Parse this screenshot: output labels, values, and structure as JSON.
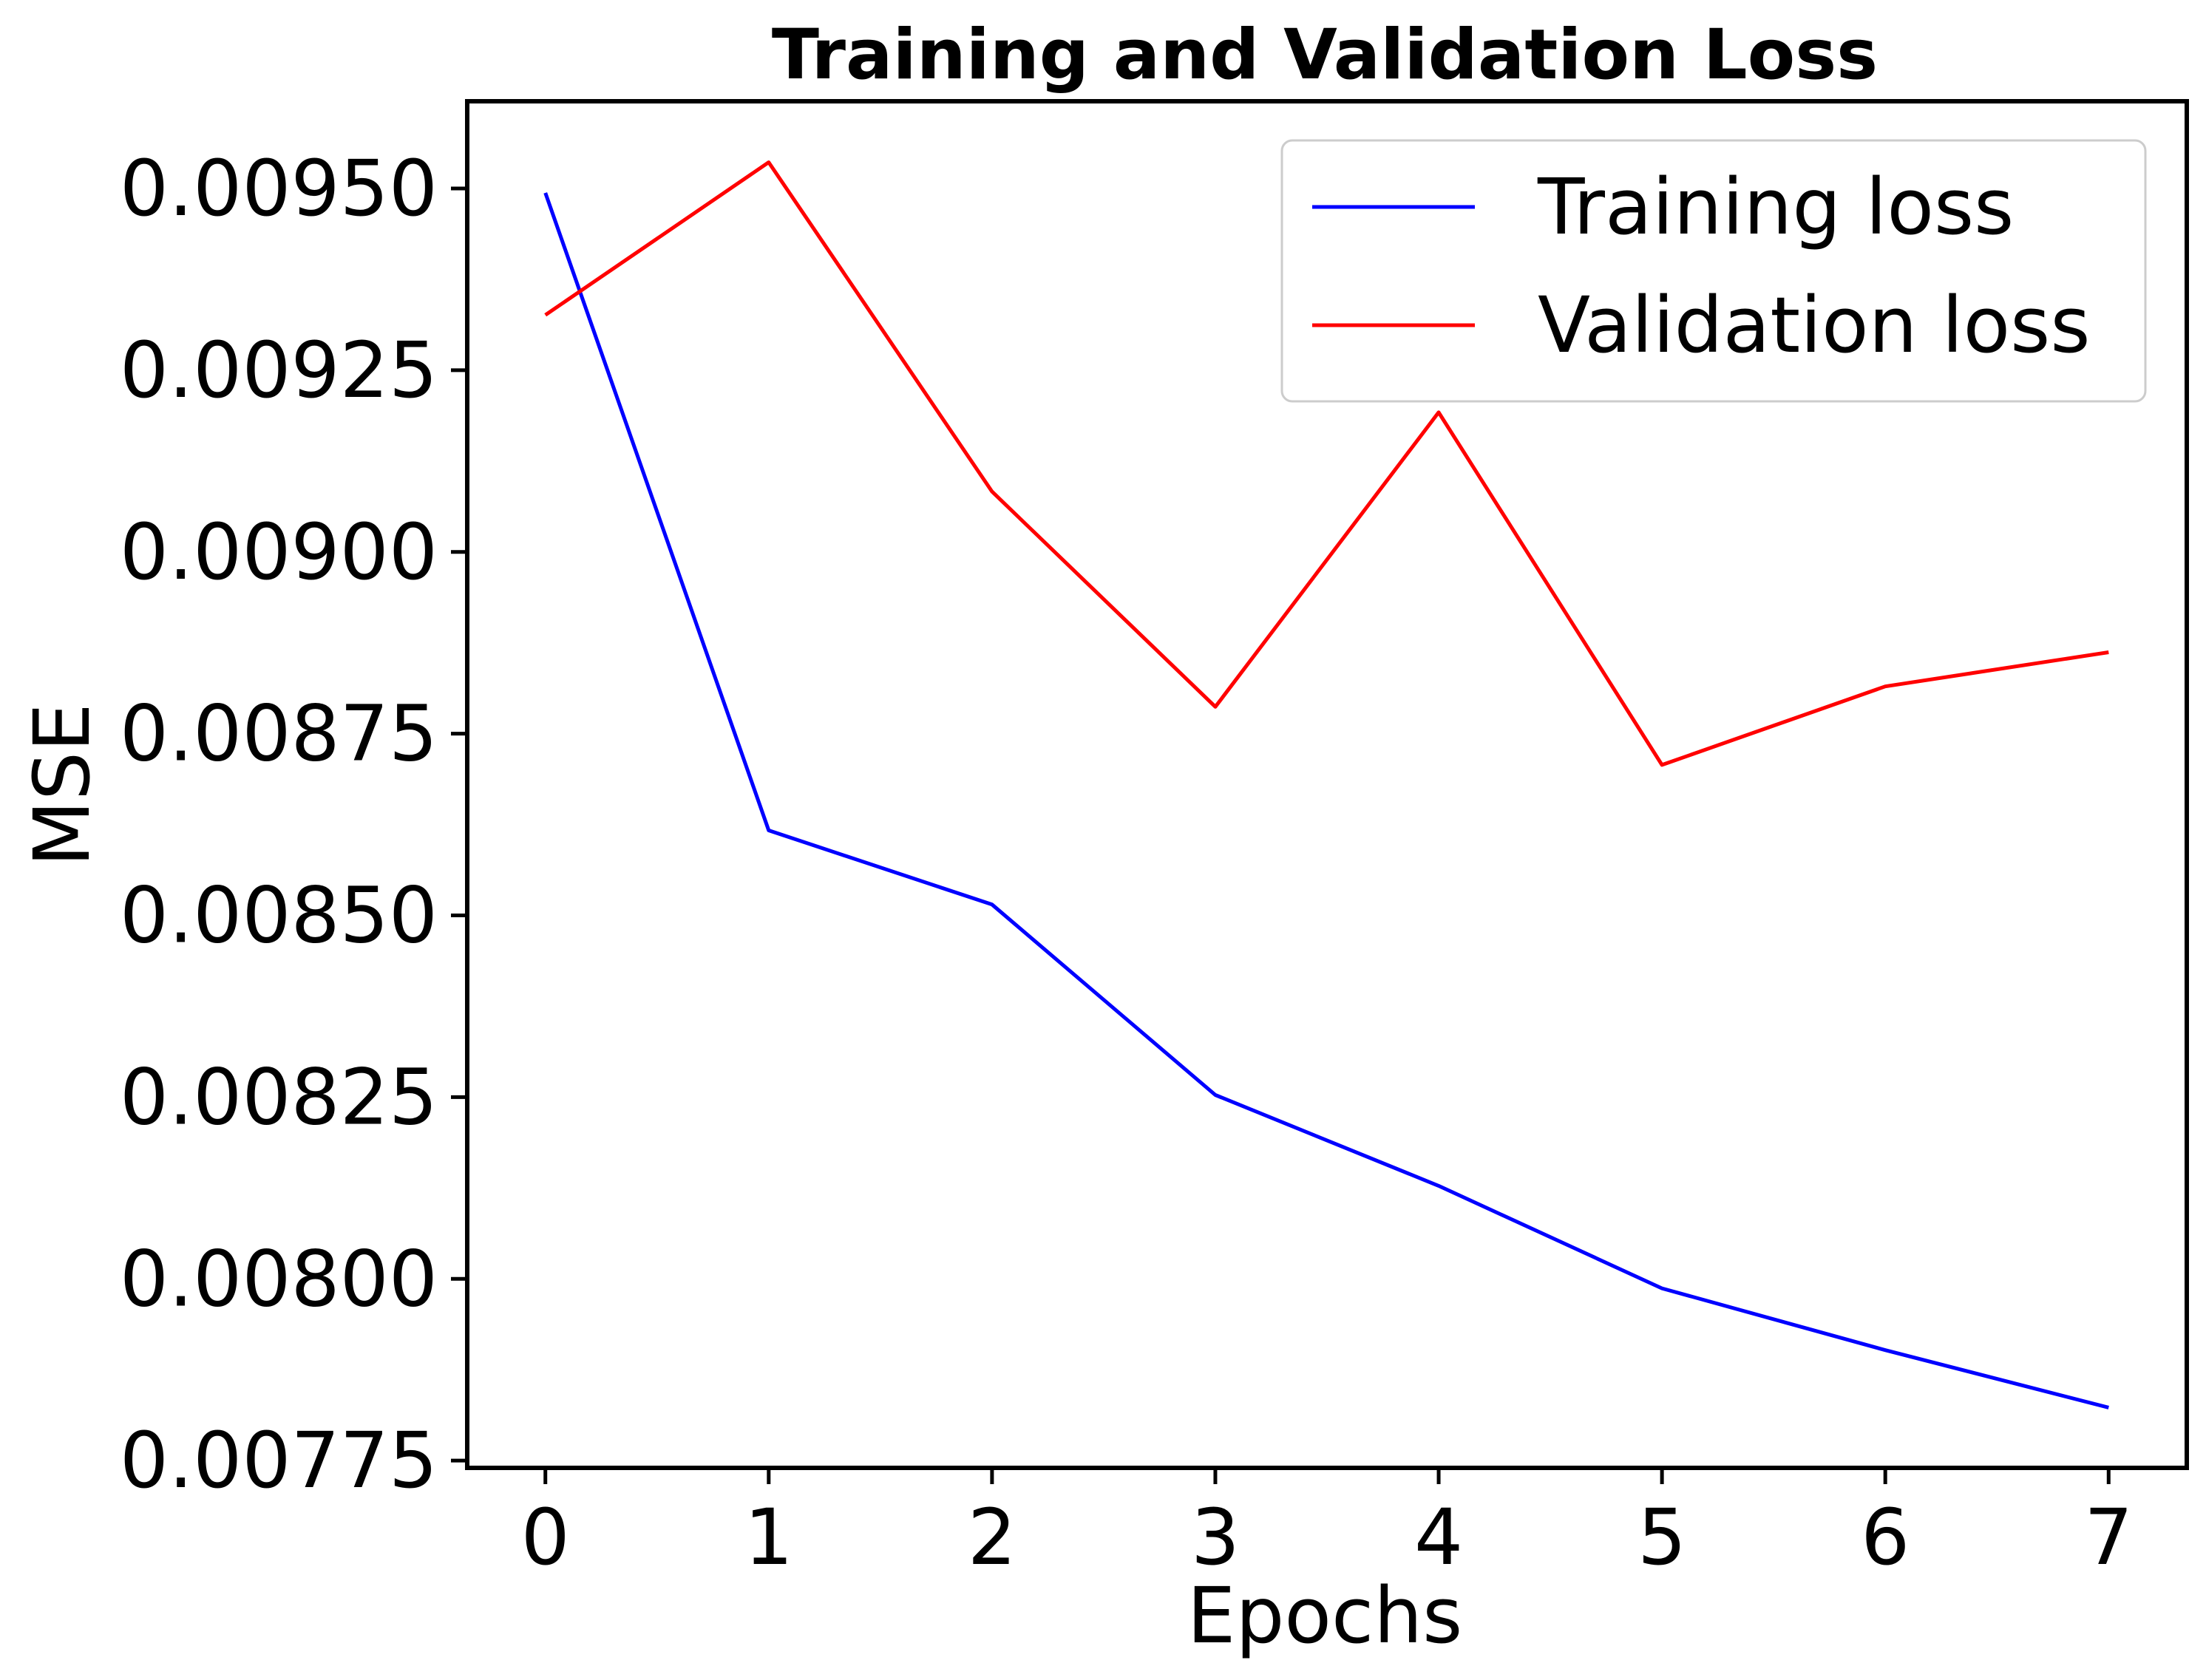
{
  "chart_data": {
    "type": "line",
    "title": "Training and Validation Loss",
    "xlabel": "Epochs",
    "ylabel": "MSE",
    "x": [
      0,
      1,
      2,
      3,
      4,
      5,
      6,
      7
    ],
    "xlim": [
      -0.35,
      7.35
    ],
    "ylim": [
      0.00774,
      0.00962
    ],
    "xticks": [
      0,
      1,
      2,
      3,
      4,
      5,
      6,
      7
    ],
    "yticks": [
      0.00775,
      0.008,
      0.00825,
      0.0085,
      0.00875,
      0.009,
      0.00925,
      0.0095
    ],
    "ytick_labels": [
      "0.00775",
      "0.00800",
      "0.00825",
      "0.00850",
      "0.00875",
      "0.00900",
      "0.00925",
      "0.00950"
    ],
    "grid": false,
    "legend_position": "top-right",
    "series": [
      {
        "name": "Training loss",
        "color": "#0000ff",
        "values": [
          0.009494,
          0.008617,
          0.008515,
          0.008253,
          0.008128,
          0.007987,
          0.007902,
          0.007823
        ]
      },
      {
        "name": "Validation loss",
        "color": "#ff0000",
        "values": [
          0.009326,
          0.009536,
          0.009083,
          0.008787,
          0.009192,
          0.008707,
          0.008815,
          0.008862
        ]
      }
    ]
  }
}
